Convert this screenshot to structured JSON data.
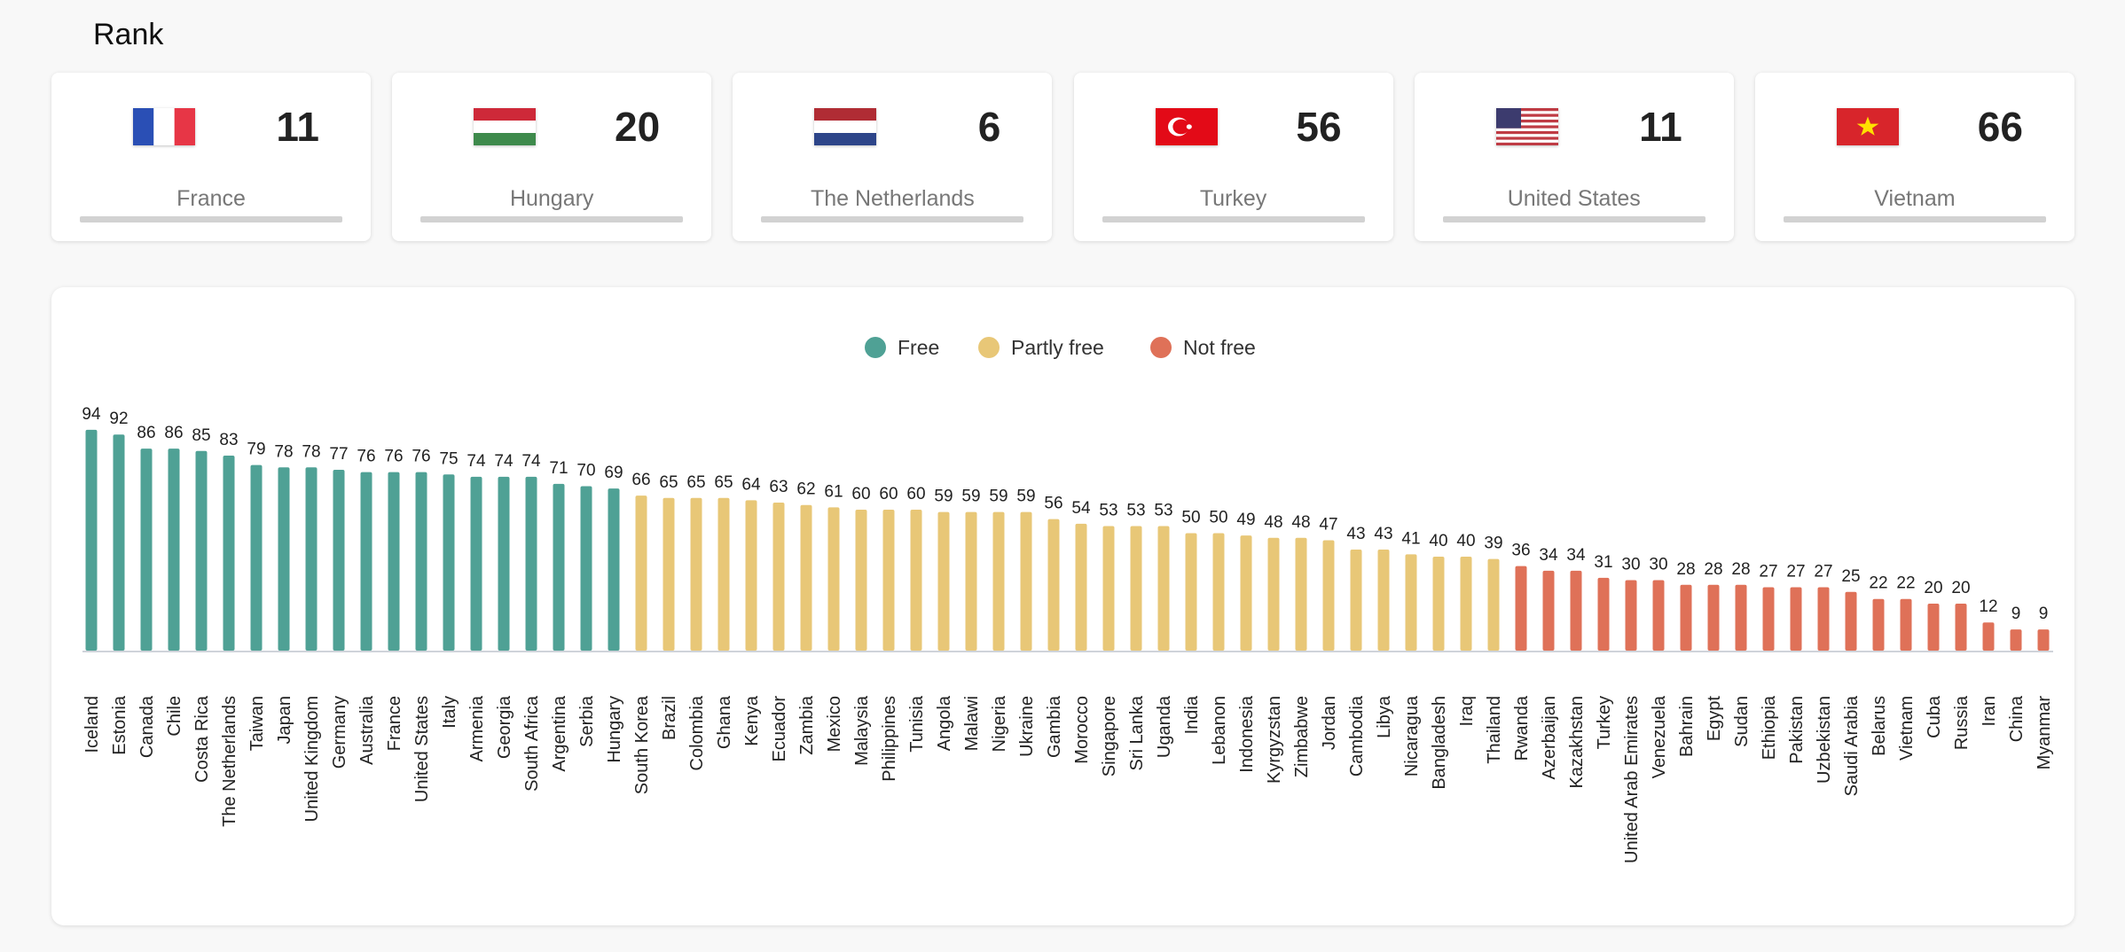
{
  "header": {
    "title": "Rank"
  },
  "cards": [
    {
      "name": "France",
      "rank": "11",
      "flag": "france"
    },
    {
      "name": "Hungary",
      "rank": "20",
      "flag": "hungary"
    },
    {
      "name": "The Netherlands",
      "rank": "6",
      "flag": "netherlands"
    },
    {
      "name": "Turkey",
      "rank": "56",
      "flag": "turkey"
    },
    {
      "name": "United States",
      "rank": "11",
      "flag": "united-states"
    },
    {
      "name": "Vietnam",
      "rank": "66",
      "flag": "vietnam"
    }
  ],
  "colors": {
    "free": "#4fa195",
    "partly_free": "#e8c777",
    "not_free": "#df7158"
  },
  "chart_data": {
    "type": "bar",
    "title": "",
    "xlabel": "",
    "ylabel": "",
    "ylim": [
      0,
      100
    ],
    "grid": false,
    "legend_position": "top-center",
    "legend": [
      "Free",
      "Partly free",
      "Not free"
    ],
    "categories": [
      "Iceland",
      "Estonia",
      "Canada",
      "Chile",
      "Costa Rica",
      "The Netherlands",
      "Taiwan",
      "Japan",
      "United Kingdom",
      "Germany",
      "Australia",
      "France",
      "United States",
      "Italy",
      "Armenia",
      "Georgia",
      "South Africa",
      "Argentina",
      "Serbia",
      "Hungary",
      "South Korea",
      "Brazil",
      "Colombia",
      "Ghana",
      "Kenya",
      "Ecuador",
      "Zambia",
      "Mexico",
      "Malaysia",
      "Philippines",
      "Tunisia",
      "Angola",
      "Malawi",
      "Nigeria",
      "Ukraine",
      "Gambia",
      "Morocco",
      "Singapore",
      "Sri Lanka",
      "Uganda",
      "India",
      "Lebanon",
      "Indonesia",
      "Kyrgyzstan",
      "Zimbabwe",
      "Jordan",
      "Cambodia",
      "Libya",
      "Nicaragua",
      "Bangladesh",
      "Iraq",
      "Thailand",
      "Rwanda",
      "Azerbaijan",
      "Kazakhstan",
      "Turkey",
      "United Arab Emirates",
      "Venezuela",
      "Bahrain",
      "Egypt",
      "Sudan",
      "Ethiopia",
      "Pakistan",
      "Uzbekistan",
      "Saudi Arabia",
      "Belarus",
      "Vietnam",
      "Cuba",
      "Russia",
      "Iran",
      "China",
      "Myanmar"
    ],
    "values": [
      94,
      92,
      86,
      86,
      85,
      83,
      79,
      78,
      78,
      77,
      76,
      76,
      76,
      75,
      74,
      74,
      74,
      71,
      70,
      69,
      66,
      65,
      65,
      65,
      64,
      63,
      62,
      61,
      60,
      60,
      60,
      59,
      59,
      59,
      59,
      56,
      54,
      53,
      53,
      53,
      50,
      50,
      49,
      48,
      48,
      47,
      43,
      43,
      41,
      40,
      40,
      39,
      36,
      34,
      34,
      31,
      30,
      30,
      28,
      28,
      28,
      27,
      27,
      27,
      25,
      22,
      22,
      20,
      20,
      12,
      9,
      9
    ],
    "status": [
      "Free",
      "Free",
      "Free",
      "Free",
      "Free",
      "Free",
      "Free",
      "Free",
      "Free",
      "Free",
      "Free",
      "Free",
      "Free",
      "Free",
      "Free",
      "Free",
      "Free",
      "Free",
      "Free",
      "Free",
      "Partly free",
      "Partly free",
      "Partly free",
      "Partly free",
      "Partly free",
      "Partly free",
      "Partly free",
      "Partly free",
      "Partly free",
      "Partly free",
      "Partly free",
      "Partly free",
      "Partly free",
      "Partly free",
      "Partly free",
      "Partly free",
      "Partly free",
      "Partly free",
      "Partly free",
      "Partly free",
      "Partly free",
      "Partly free",
      "Partly free",
      "Partly free",
      "Partly free",
      "Partly free",
      "Partly free",
      "Partly free",
      "Partly free",
      "Partly free",
      "Partly free",
      "Partly free",
      "Not free",
      "Not free",
      "Not free",
      "Not free",
      "Not free",
      "Not free",
      "Not free",
      "Not free",
      "Not free",
      "Not free",
      "Not free",
      "Not free",
      "Not free",
      "Not free",
      "Not free",
      "Not free",
      "Not free",
      "Not free",
      "Not free",
      "Not free"
    ]
  }
}
